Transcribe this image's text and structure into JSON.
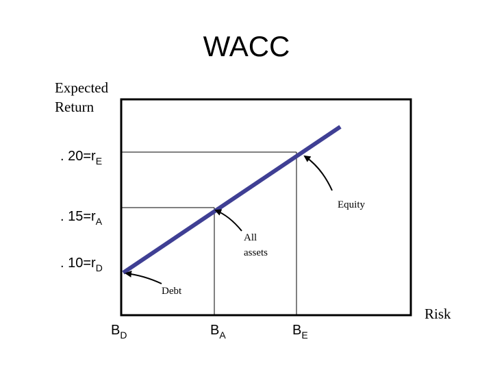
{
  "title": "WACC",
  "y_axis_label": {
    "lines": [
      "Expected",
      "Return"
    ]
  },
  "x_axis_label": "Risk",
  "y_labels": [
    {
      "main": ". 20=r",
      "sub": "E"
    },
    {
      "main": ". 15=r",
      "sub": "A"
    },
    {
      "main": ". 10=r",
      "sub": "D"
    }
  ],
  "x_labels": [
    {
      "main": "B",
      "sub": "D"
    },
    {
      "main": "B",
      "sub": "A"
    },
    {
      "main": "B",
      "sub": "E"
    }
  ],
  "annotations": {
    "equity": "Equity",
    "all_assets": {
      "lines": [
        "All",
        "assets"
      ]
    },
    "debt": "Debt"
  }
}
